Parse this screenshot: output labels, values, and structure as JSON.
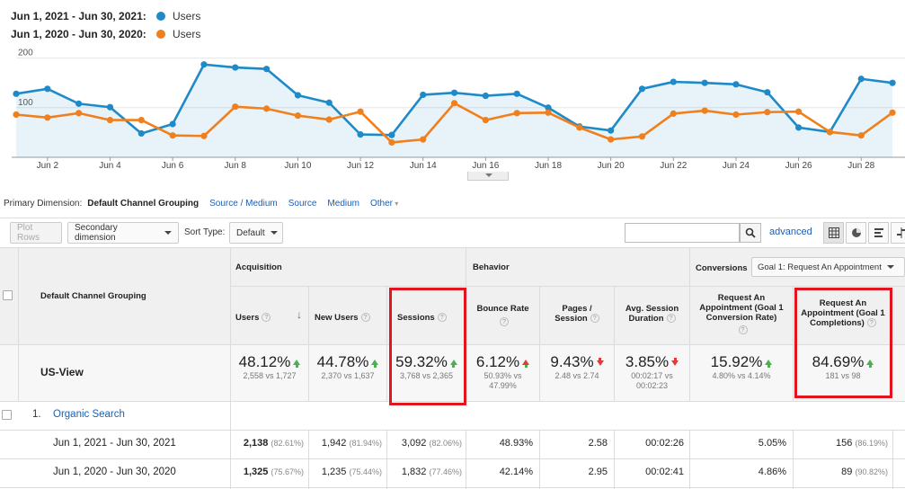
{
  "legend": [
    {
      "date": "Jun 1, 2021 - Jun 30, 2021:",
      "metric": "Users",
      "color": "#1f8ac8"
    },
    {
      "date": "Jun 1, 2020 - Jun 30, 2020:",
      "metric": "Users",
      "color": "#f07f1e"
    }
  ],
  "chart_data": {
    "type": "line",
    "y_ticks": [
      "200",
      "100"
    ],
    "ylim": [
      0,
      230
    ],
    "x_tick_labels": [
      "Jun 2",
      "Jun 4",
      "Jun 6",
      "Jun 8",
      "Jun 10",
      "Jun 12",
      "Jun 14",
      "Jun 16",
      "Jun 18",
      "Jun 20",
      "Jun 22",
      "Jun 24",
      "Jun 26",
      "Jun 28"
    ],
    "x": [
      1,
      2,
      3,
      4,
      5,
      6,
      7,
      8,
      9,
      10,
      11,
      12,
      13,
      14,
      15,
      16,
      17,
      18,
      19,
      20,
      21,
      22,
      23,
      24,
      25,
      26,
      27,
      28,
      29
    ],
    "series": [
      {
        "name": "Jun 1, 2021 - Jun 30, 2021: Users",
        "color": "#1f8ac8",
        "values": [
          128,
          138,
          108,
          101,
          48,
          67,
          187,
          181,
          178,
          125,
          110,
          46,
          45,
          126,
          130,
          124,
          128,
          100,
          62,
          54,
          138,
          152,
          150,
          147,
          131,
          60,
          51,
          158,
          150
        ]
      },
      {
        "name": "Jun 1, 2020 - Jun 30, 2020: Users",
        "color": "#f07f1e",
        "values": [
          86,
          80,
          89,
          75,
          75,
          44,
          43,
          102,
          98,
          84,
          76,
          92,
          30,
          36,
          109,
          75,
          89,
          90,
          60,
          36,
          42,
          88,
          94,
          86,
          91,
          92,
          51,
          44,
          90
        ]
      }
    ]
  },
  "dimension_bar": {
    "label": "Primary Dimension:",
    "active": "Default Channel Grouping",
    "links": [
      "Source / Medium",
      "Source",
      "Medium",
      "Other"
    ]
  },
  "toolbar": {
    "plot_rows": "Plot Rows",
    "secondary_dimension": "Secondary dimension",
    "sort_type_label": "Sort Type:",
    "sort_type_value": "Default",
    "advanced": "advanced"
  },
  "table": {
    "dimension_header": "Default Channel Grouping",
    "groups": {
      "acquisition": "Acquisition",
      "behavior": "Behavior",
      "conversions": "Conversions",
      "goal_select": "Goal 1: Request An Appointment"
    },
    "columns": {
      "users": "Users",
      "new_users": "New Users",
      "sessions": "Sessions",
      "bounce_rate": "Bounce Rate",
      "pages_session_1": "Pages /",
      "pages_session_2": "Session",
      "avg_duration_1": "Avg. Session",
      "avg_duration_2": "Duration",
      "conv_rate_1": "Request An",
      "conv_rate_2": "Appointment (Goal 1",
      "conv_rate_3": "Conversion Rate)",
      "completions_1": "Request An",
      "completions_2": "Appointment (Goal 1",
      "completions_3": "Completions)"
    },
    "summary": {
      "view": "US-View",
      "users": {
        "change": "48.12%",
        "compare": "2,558 vs 1,727",
        "dir": "up"
      },
      "new_users": {
        "change": "44.78%",
        "compare": "2,370 vs 1,637",
        "dir": "up"
      },
      "sessions": {
        "change": "59.32%",
        "compare": "3,768 vs 2,365",
        "dir": "up"
      },
      "bounce_rate": {
        "change": "6.12%",
        "compare_1": "50.93% vs",
        "compare_2": "47.99%",
        "dir": "up-red"
      },
      "pages_session": {
        "change": "9.43%",
        "compare": "2.48 vs 2.74",
        "dir": "down"
      },
      "avg_duration": {
        "change": "3.85%",
        "compare_1": "00:02:17 vs",
        "compare_2": "00:02:23",
        "dir": "down"
      },
      "conv_rate": {
        "change": "15.92%",
        "compare": "4.80% vs 4.14%",
        "dir": "up"
      },
      "completions": {
        "change": "84.69%",
        "compare": "181 vs 98",
        "dir": "up"
      }
    },
    "row1": {
      "index": "1.",
      "label": "Organic Search"
    },
    "rows": [
      {
        "label": "Jun 1, 2021 - Jun 30, 2021",
        "users": "2,138",
        "users_pct": "(82.61%)",
        "new_users": "1,942",
        "new_users_pct": "(81.94%)",
        "sessions": "3,092",
        "sessions_pct": "(82.06%)",
        "bounce": "48.93%",
        "pages": "2.58",
        "duration": "00:02:26",
        "conv_rate": "5.05%",
        "completions": "156",
        "completions_pct": "(86.19%)"
      },
      {
        "label": "Jun 1, 2020 - Jun 30, 2020",
        "users": "1,325",
        "users_pct": "(75.67%)",
        "new_users": "1,235",
        "new_users_pct": "(75.44%)",
        "sessions": "1,832",
        "sessions_pct": "(77.46%)",
        "bounce": "42.14%",
        "pages": "2.95",
        "duration": "00:02:41",
        "conv_rate": "4.86%",
        "completions": "89",
        "completions_pct": "(90.82%)"
      }
    ]
  }
}
